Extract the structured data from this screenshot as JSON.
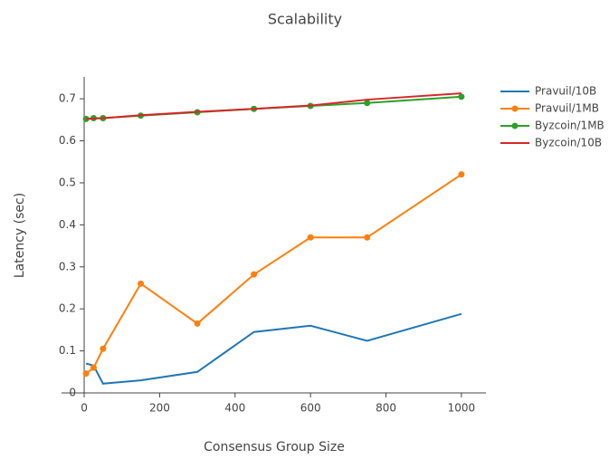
{
  "chart_data": {
    "type": "line",
    "title": "Scalability",
    "x_label": "Consensus Group Size",
    "y_label": "Latency (sec)",
    "x": [
      5,
      25,
      50,
      150,
      300,
      450,
      600,
      750,
      1000
    ],
    "series": [
      {
        "name": "Pravuil/10B",
        "color": "#1f77b4",
        "markers": false,
        "values": [
          0.07,
          0.065,
          0.022,
          0.03,
          0.05,
          0.145,
          0.16,
          0.124,
          0.188
        ]
      },
      {
        "name": "Pravuil/1MB",
        "color": "#ff7f0e",
        "markers": true,
        "values": [
          0.046,
          0.06,
          0.105,
          0.26,
          0.165,
          0.282,
          0.37,
          0.37,
          0.52
        ]
      },
      {
        "name": "Byzcoin/1MB",
        "color": "#2ca02c",
        "markers": true,
        "values": [
          0.652,
          0.654,
          0.654,
          0.66,
          0.668,
          0.676,
          0.683,
          0.69,
          0.705
        ]
      },
      {
        "name": "Byzcoin/10B",
        "color": "#d62728",
        "markers": false,
        "values": [
          0.652,
          0.653,
          0.654,
          0.661,
          0.669,
          0.676,
          0.684,
          0.698,
          0.713
        ]
      }
    ],
    "xlim": [
      -60,
      1065
    ],
    "xticks": [
      0,
      200,
      400,
      600,
      800,
      1000
    ],
    "ylim": [
      0,
      0.752
    ],
    "yticks": [
      0,
      0.1,
      0.2,
      0.3,
      0.4,
      0.5,
      0.6,
      0.7
    ],
    "legend": "right"
  }
}
